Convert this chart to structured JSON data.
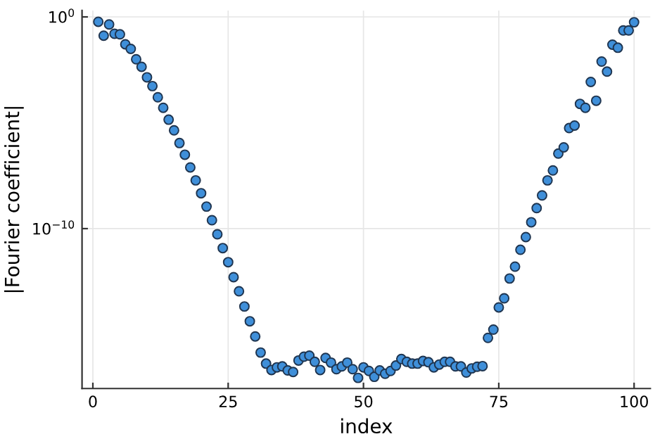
{
  "chart_data": {
    "type": "scatter",
    "xlabel": "index",
    "ylabel": "|Fourier coefficient|",
    "x": [
      1,
      2,
      3,
      4,
      5,
      6,
      7,
      8,
      9,
      10,
      11,
      12,
      13,
      14,
      15,
      16,
      17,
      18,
      19,
      20,
      21,
      22,
      23,
      24,
      25,
      26,
      27,
      28,
      29,
      30,
      31,
      32,
      33,
      34,
      35,
      36,
      37,
      38,
      39,
      40,
      41,
      42,
      43,
      44,
      45,
      46,
      47,
      48,
      49,
      50,
      51,
      52,
      53,
      54,
      55,
      56,
      57,
      58,
      59,
      60,
      61,
      62,
      63,
      64,
      65,
      66,
      67,
      68,
      69,
      70,
      71,
      72,
      73,
      74,
      75,
      76,
      77,
      78,
      79,
      80,
      81,
      82,
      83,
      84,
      85,
      86,
      87,
      88,
      89,
      90,
      91,
      92,
      93,
      94,
      95,
      96,
      97,
      98,
      99,
      100
    ],
    "series": [
      {
        "color": "#3f8fd9",
        "values": [
          0.59,
          0.13,
          0.44,
          0.16,
          0.15,
          0.051,
          0.031,
          0.01,
          0.0044,
          0.0014,
          0.00054,
          0.00016,
          5.1e-05,
          1.4e-05,
          4.4e-06,
          1.1e-06,
          3.1e-07,
          7.8e-08,
          1.9e-08,
          4.7e-09,
          1.1e-09,
          2.5e-10,
          5.4e-11,
          1.2e-11,
          2.6e-12,
          5.1e-13,
          1.1e-13,
          2.1e-14,
          4.2e-15,
          8.1e-16,
          1.4e-16,
          4.2e-17,
          2.1e-17,
          2.8e-17,
          3.1e-17,
          2e-17,
          1.7e-17,
          5.9e-17,
          8.9e-17,
          1e-16,
          5.1e-17,
          2.1e-17,
          7.8e-17,
          4.7e-17,
          2.3e-17,
          3.1e-17,
          4.7e-17,
          2.3e-17,
          8.9e-18,
          2.8e-17,
          1.9e-17,
          1e-17,
          2e-17,
          1.4e-17,
          1.9e-17,
          3.4e-17,
          6.9e-17,
          5.1e-17,
          4.2e-17,
          4.2e-17,
          5.6e-17,
          4.9e-17,
          2.8e-17,
          3.8e-17,
          5.1e-17,
          5.1e-17,
          3.1e-17,
          3.1e-17,
          1.6e-17,
          2.5e-17,
          3e-17,
          3.2e-17,
          6.9e-16,
          1.7e-15,
          1.9e-14,
          5.1e-14,
          4.4e-13,
          1.6e-12,
          1e-11,
          4e-11,
          2e-10,
          9.3e-10,
          3.7e-09,
          1.9e-08,
          5.6e-08,
          3.5e-07,
          6.9e-07,
          5.6e-06,
          7.4e-06,
          7.8e-05,
          5.1e-05,
          0.00085,
          0.00011,
          0.0078,
          0.0026,
          0.049,
          0.035,
          0.23,
          0.23,
          0.56
        ]
      }
    ],
    "xlim": [
      -2,
      103
    ],
    "xticks": [
      0,
      25,
      50,
      75,
      100
    ],
    "log": "y",
    "ylim": [
      2.8e-18,
      2
    ],
    "yticks": [
      {
        "value": 1,
        "label": "10$^{0}$"
      },
      {
        "value": 1e-10,
        "label": "10$^{−10}$"
      }
    ],
    "grid": true,
    "marker": "circle"
  }
}
